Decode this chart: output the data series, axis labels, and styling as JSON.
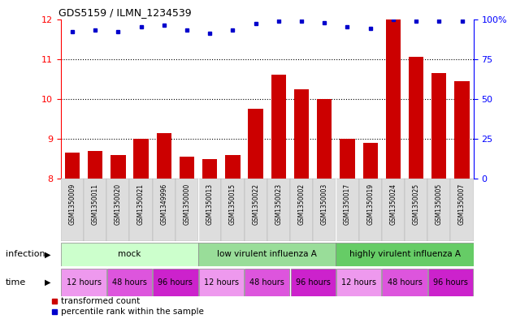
{
  "title": "GDS5159 / ILMN_1234539",
  "samples": [
    "GSM1350009",
    "GSM1350011",
    "GSM1350020",
    "GSM1350021",
    "GSM1349996",
    "GSM1350000",
    "GSM1350013",
    "GSM1350015",
    "GSM1350022",
    "GSM1350023",
    "GSM1350002",
    "GSM1350003",
    "GSM1350017",
    "GSM1350019",
    "GSM1350024",
    "GSM1350025",
    "GSM1350005",
    "GSM1350007"
  ],
  "bar_values": [
    8.65,
    8.7,
    8.6,
    9.0,
    9.15,
    8.55,
    8.5,
    8.6,
    9.75,
    10.6,
    10.25,
    10.0,
    9.0,
    8.9,
    12.0,
    11.05,
    10.65,
    10.45
  ],
  "dot_values": [
    92,
    93,
    92,
    95,
    96,
    93,
    91,
    93,
    97,
    99,
    99,
    98,
    95,
    94,
    100,
    99,
    99,
    99
  ],
  "bar_color": "#cc0000",
  "dot_color": "#0000cc",
  "ylim_left": [
    8,
    12
  ],
  "ylim_right": [
    0,
    100
  ],
  "yticks_left": [
    8,
    9,
    10,
    11,
    12
  ],
  "yticks_right": [
    0,
    25,
    50,
    75,
    100
  ],
  "ytick_labels_right": [
    "0",
    "25",
    "50",
    "75",
    "100%"
  ],
  "grid_lines": [
    9,
    10,
    11
  ],
  "infection_colors": [
    "#ccffcc",
    "#99dd99",
    "#66cc66"
  ],
  "infection_labels": [
    "mock",
    "low virulent influenza A",
    "highly virulent influenza A"
  ],
  "time_labels": [
    "12 hours",
    "48 hours",
    "96 hours",
    "12 hours",
    "48 hours",
    "96 hours",
    "12 hours",
    "48 hours",
    "96 hours"
  ],
  "time_colors": [
    "#ee99ee",
    "#dd55dd",
    "#cc22cc",
    "#ee99ee",
    "#dd55dd",
    "#cc22cc",
    "#ee99ee",
    "#dd55dd",
    "#cc22cc"
  ],
  "infection_label": "infection",
  "time_label": "time",
  "legend1": "transformed count",
  "legend2": "percentile rank within the sample",
  "bg_color": "#ffffff",
  "xticklabel_bg": "#dddddd"
}
